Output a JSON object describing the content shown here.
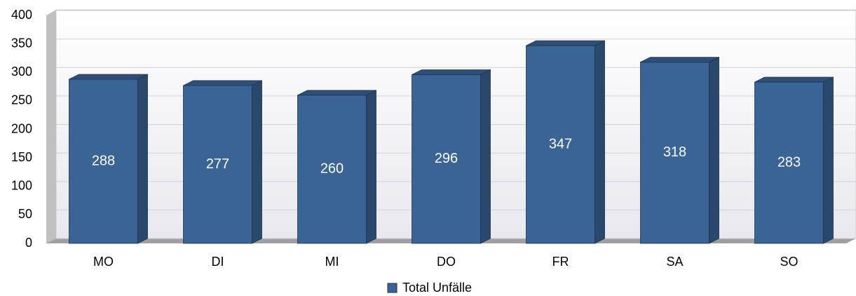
{
  "chart_data": {
    "type": "bar",
    "categories": [
      "MO",
      "DI",
      "MI",
      "DO",
      "FR",
      "SA",
      "SO"
    ],
    "series": [
      {
        "name": "Total Unfälle",
        "color": "#3a6496",
        "values": [
          288,
          277,
          260,
          296,
          347,
          318,
          283
        ]
      }
    ],
    "ylim": [
      0,
      400
    ],
    "yticks": [
      0,
      50,
      100,
      150,
      200,
      250,
      300,
      350,
      400
    ],
    "grid": true,
    "legend": "bottom"
  }
}
